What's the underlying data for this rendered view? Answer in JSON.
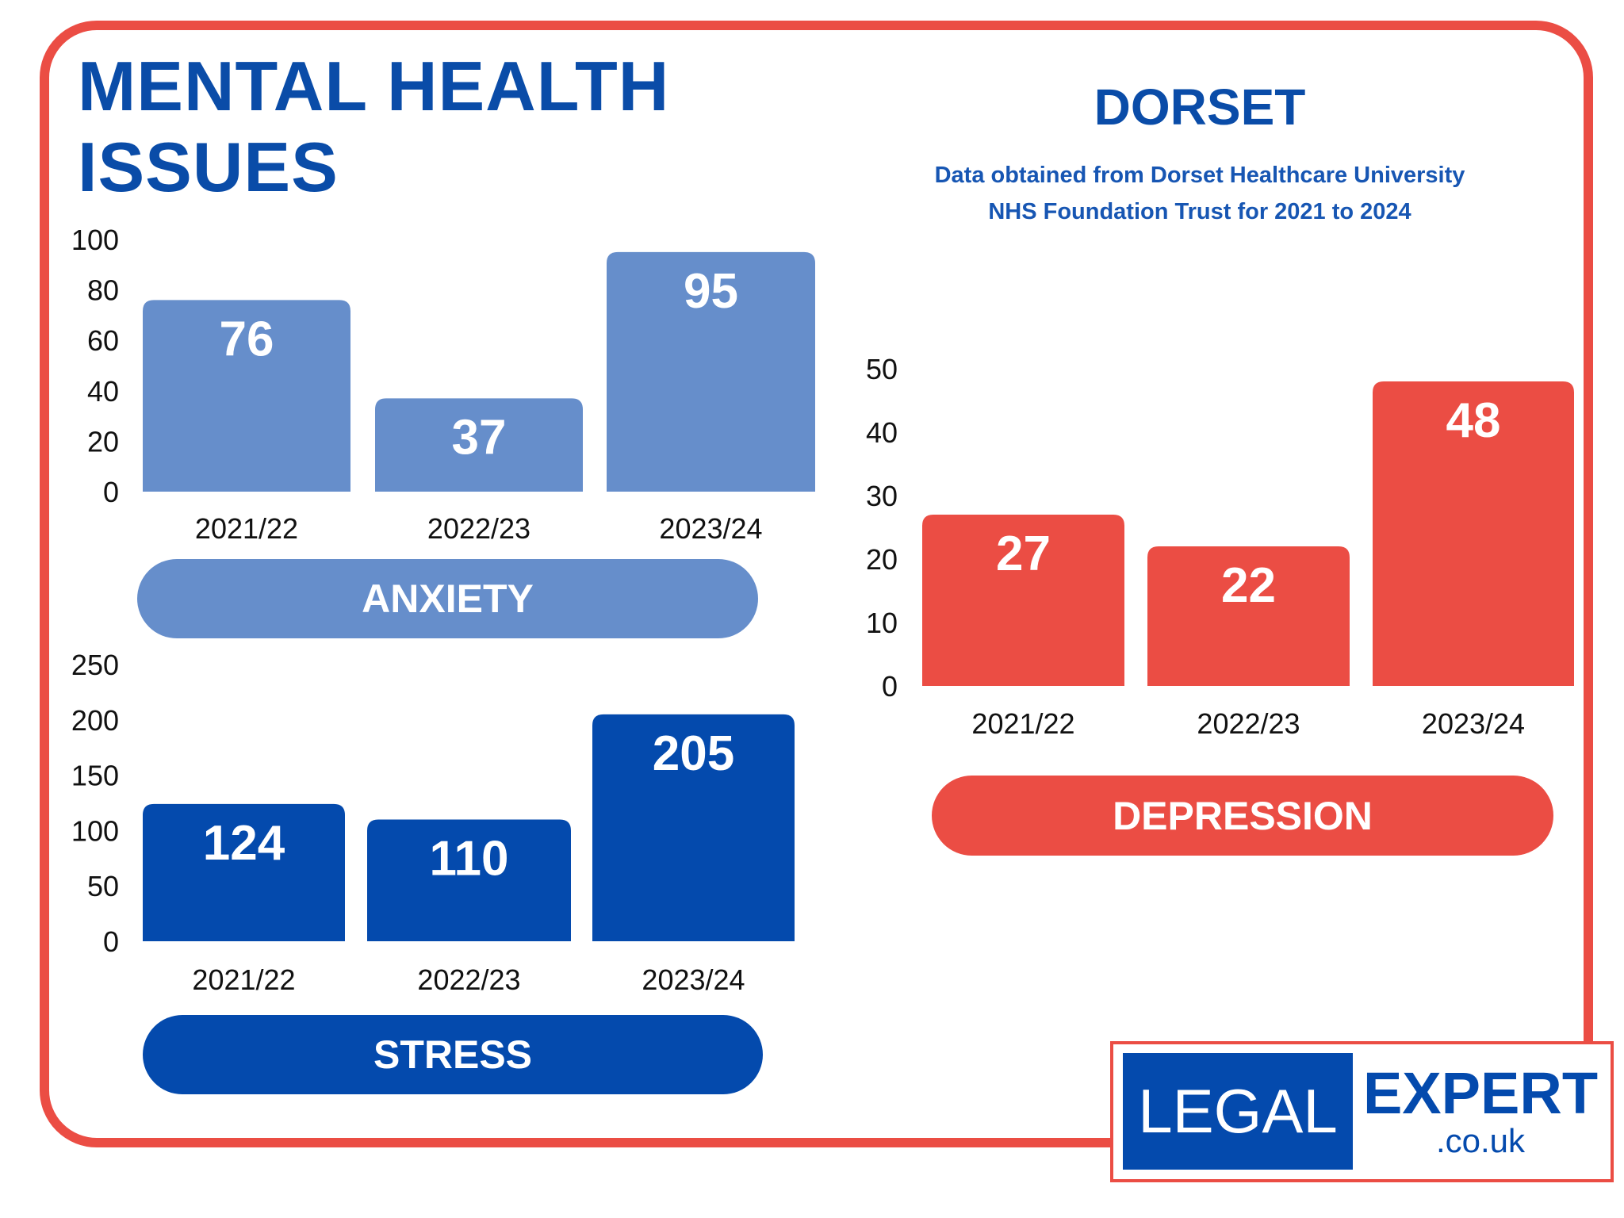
{
  "header": {
    "title_line1": "MENTAL HEALTH",
    "title_line2": "ISSUES"
  },
  "region": {
    "title": "DORSET",
    "subtitle_line1": "Data obtained from Dorset Healthcare University",
    "subtitle_line2": "NHS Foundation Trust for 2021 to 2024"
  },
  "logo": {
    "left": "LEGAL",
    "right": "EXPERT",
    "domain": ".co.uk"
  },
  "colors": {
    "anxiety": "#668ecb",
    "stress": "#044aad",
    "depression": "#eb4d44",
    "border": "#eb4d44",
    "title": "#0a4ca8"
  },
  "chart_data": [
    {
      "type": "bar",
      "title": "ANXIETY",
      "categories": [
        "2021/22",
        "2022/23",
        "2023/24"
      ],
      "values": [
        76,
        37,
        95
      ],
      "ylim": [
        0,
        100
      ],
      "yticks": [
        0,
        20,
        40,
        60,
        80,
        100
      ],
      "xlabel": "",
      "ylabel": ""
    },
    {
      "type": "bar",
      "title": "STRESS",
      "categories": [
        "2021/22",
        "2022/23",
        "2023/24"
      ],
      "values": [
        124,
        110,
        205
      ],
      "ylim": [
        0,
        250
      ],
      "yticks": [
        0,
        50,
        100,
        150,
        200,
        250
      ],
      "xlabel": "",
      "ylabel": ""
    },
    {
      "type": "bar",
      "title": "DEPRESSION",
      "categories": [
        "2021/22",
        "2022/23",
        "2023/24"
      ],
      "values": [
        27,
        22,
        48
      ],
      "ylim": [
        0,
        50
      ],
      "yticks": [
        0,
        10,
        20,
        30,
        40,
        50
      ],
      "xlabel": "",
      "ylabel": ""
    }
  ]
}
